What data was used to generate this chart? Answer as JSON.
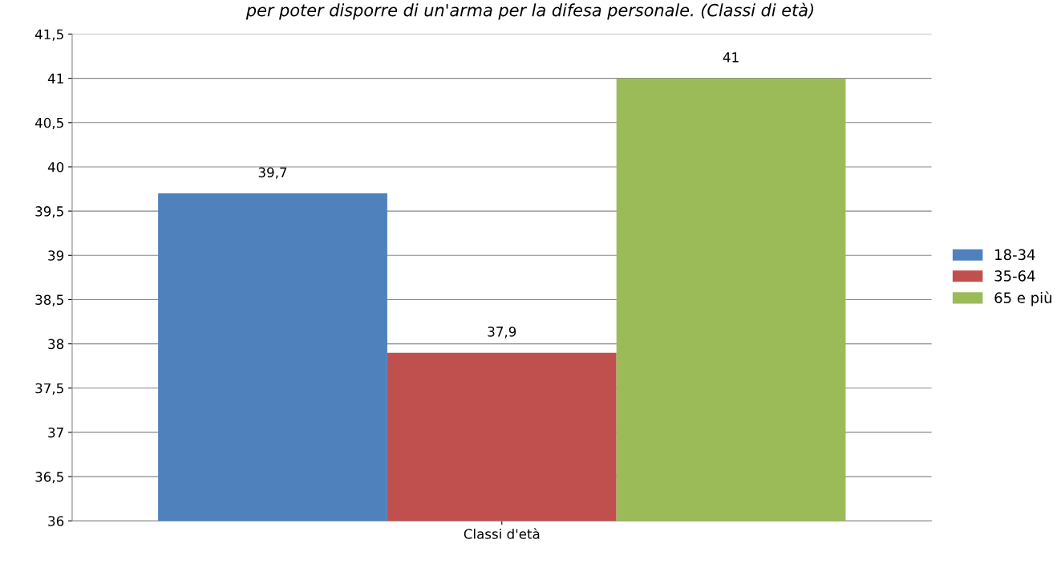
{
  "chart_data": {
    "type": "bar",
    "title": "per poter disporre di un'arma per la difesa personale. (Classi di età)",
    "categories": [
      "Classi d'età"
    ],
    "series": [
      {
        "name": "18-34",
        "color": "#4f81bd",
        "values": [
          39.7
        ],
        "value_labels": [
          "39,7"
        ]
      },
      {
        "name": "35-64",
        "color": "#c0504d",
        "values": [
          37.9
        ],
        "value_labels": [
          "37,9"
        ]
      },
      {
        "name": "65 e più",
        "color": "#9bbb59",
        "values": [
          41
        ],
        "value_labels": [
          "41"
        ]
      }
    ],
    "ylim": [
      36,
      41.5
    ],
    "yticks": [
      {
        "value": 36,
        "label": "36"
      },
      {
        "value": 36.5,
        "label": "36,5"
      },
      {
        "value": 37,
        "label": "37"
      },
      {
        "value": 37.5,
        "label": "37,5"
      },
      {
        "value": 38,
        "label": "38"
      },
      {
        "value": 38.5,
        "label": "38,5"
      },
      {
        "value": 39,
        "label": "39"
      },
      {
        "value": 39.5,
        "label": "39,5"
      },
      {
        "value": 40,
        "label": "40"
      },
      {
        "value": 40.5,
        "label": "40,5"
      },
      {
        "value": 41,
        "label": "41"
      },
      {
        "value": 41.5,
        "label": "41,5"
      }
    ],
    "grid": "y",
    "legend": "right"
  }
}
